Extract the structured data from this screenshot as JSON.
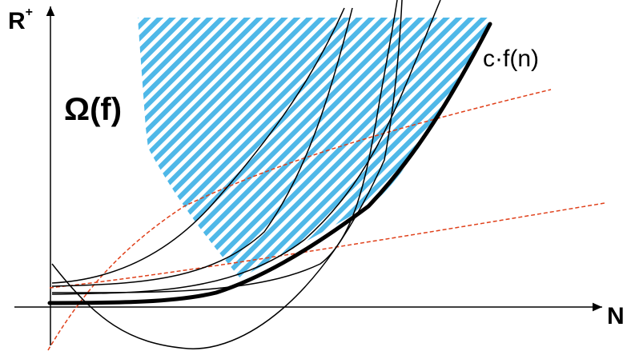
{
  "labels": {
    "y_axis": "R",
    "y_axis_superscript": "+",
    "x_axis": "N",
    "set_label": "Ω(f)",
    "bound_label": "c·f(n)"
  },
  "colors": {
    "hatch_blue": "#4fb8e8",
    "curve_black": "#000000",
    "dashed_red": "#e0401a"
  }
}
